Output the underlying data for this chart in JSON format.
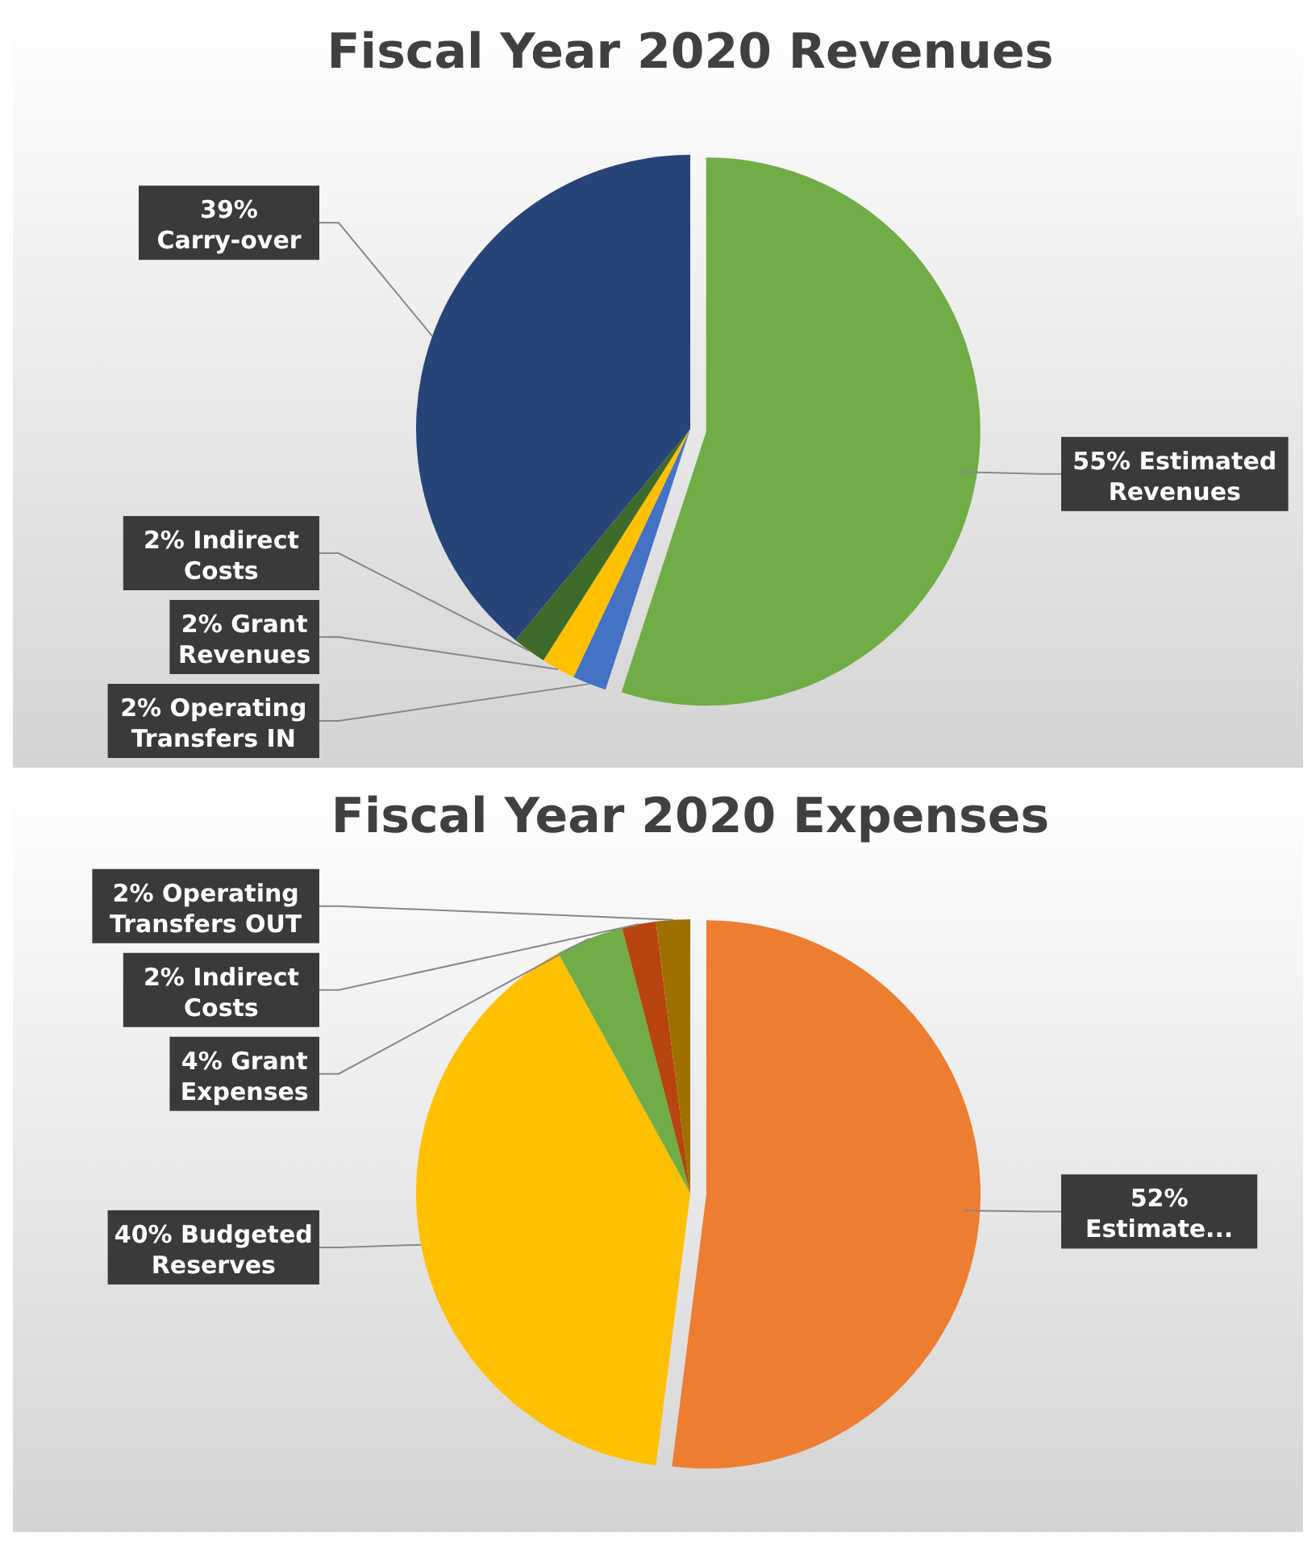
{
  "chart_data": [
    {
      "type": "pie",
      "title": "Fiscal Year 2020 Revenues",
      "categories": [
        "Estimated Revenues",
        "Operating Transfers IN",
        "Grant Revenues",
        "Indirect Costs",
        "Carry-over"
      ],
      "values": [
        55,
        2,
        2,
        2,
        39
      ],
      "value_labels": [
        "55%",
        "2%",
        "2%",
        "2%",
        "39%"
      ],
      "colors": [
        "#70ad47",
        "#4472c4",
        "#ffc000",
        "#3f6b2a",
        "#264478"
      ]
    },
    {
      "type": "pie",
      "title": "Fiscal Year 2020 Expenses",
      "categories": [
        "Estimate...",
        "Budgeted Reserves",
        "Grant Expenses",
        "Indirect Costs",
        "Operating Transfers OUT"
      ],
      "values": [
        52,
        40,
        4,
        2,
        2
      ],
      "value_labels": [
        "52%",
        "40%",
        "4%",
        "2%",
        "2%"
      ],
      "colors": [
        "#ed7d31",
        "#ffc000",
        "#70ad47",
        "#b8440f",
        "#9e7000"
      ]
    }
  ]
}
